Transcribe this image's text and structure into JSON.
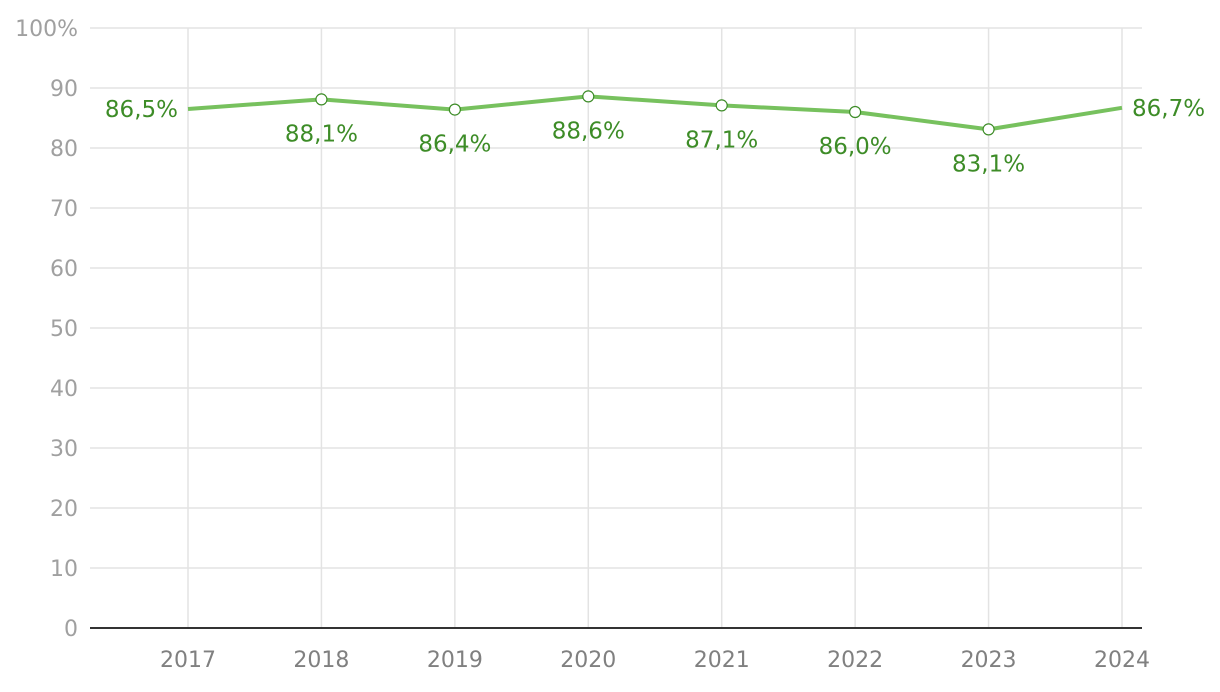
{
  "chart_data": {
    "type": "line",
    "x": [
      "2017",
      "2018",
      "2019",
      "2020",
      "2021",
      "2022",
      "2023",
      "2024"
    ],
    "series": [
      {
        "values": [
          86.5,
          88.1,
          86.4,
          88.6,
          87.1,
          86.0,
          83.1,
          86.7
        ],
        "data_labels": [
          "86,5%",
          "88,1%",
          "86,4%",
          "88,6%",
          "87,1%",
          "86,0%",
          "83,1%",
          "86,7%"
        ]
      }
    ],
    "ylim": [
      0,
      100
    ],
    "yticks": [
      "0",
      "10",
      "20",
      "30",
      "40",
      "50",
      "60",
      "70",
      "80",
      "90",
      "100%"
    ],
    "grid": true,
    "colors": {
      "line": "#77c15e",
      "label": "#3d8c27",
      "grid": "#e3e3e3",
      "axis": "#333333"
    }
  }
}
